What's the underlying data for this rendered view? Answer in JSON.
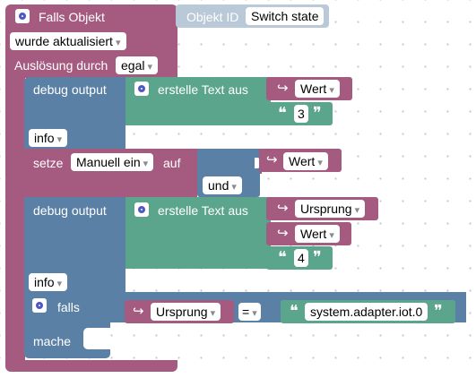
{
  "event": {
    "title": "Falls Objekt",
    "object_id_label": "Objekt ID",
    "object_id_value": "Switch state",
    "trigger": "wurde aktualisiert",
    "cause_label": "Auslösung durch",
    "cause_value": "egal"
  },
  "debug1": {
    "label": "debug output",
    "level": "info",
    "text_label": "erstelle Text aus",
    "items": [
      "Wert",
      "3"
    ]
  },
  "set_block": {
    "label": "setze",
    "variable": "Manuell ein",
    "on_label": "auf",
    "operator": "und",
    "value": "Wert"
  },
  "debug2": {
    "label": "debug output",
    "level": "info",
    "text_label": "erstelle Text aus",
    "items": [
      "Ursprung",
      "Wert",
      "4"
    ]
  },
  "if_block": {
    "label": "falls",
    "do_label": "mache",
    "left": "Ursprung",
    "operator": "=",
    "right": "system.adapter.iot.0"
  },
  "colors": {
    "event_block": "#a55b80",
    "debug_block": "#5b80a5",
    "text_block": "#5ba58c",
    "object_id_block": "#b9c9d8",
    "gear_icon": "#4f56c8"
  }
}
